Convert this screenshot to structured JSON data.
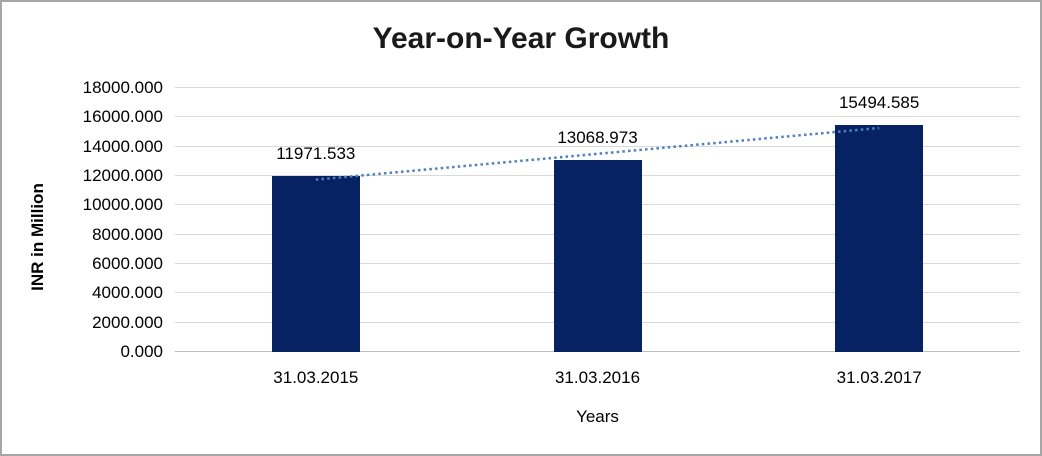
{
  "chart_data": {
    "type": "bar",
    "title": "Year-on-Year Growth",
    "xlabel": "Years",
    "ylabel": "INR in Million",
    "categories": [
      "31.03.2015",
      "31.03.2016",
      "31.03.2017"
    ],
    "values": [
      11971.533,
      13068.973,
      15494.585
    ],
    "data_labels": [
      "11971.533",
      "13068.973",
      "15494.585"
    ],
    "ylim": [
      0,
      18000
    ],
    "y_tick_step": 2000,
    "y_tick_labels": [
      "18000.000",
      "16000.000",
      "14000.000",
      "12000.000",
      "10000.000",
      "8000.000",
      "6000.000",
      "4000.000",
      "2000.000",
      "0.000"
    ],
    "grid": true,
    "legend": "none",
    "bar_color": "#072262",
    "trendline": {
      "type": "linear",
      "style": "dotted",
      "color": "#4f81bd"
    },
    "gridline_color": "#d9d9d9",
    "axis_line_color": "#bfbfbf",
    "frame_border_color": "#a6a6a6"
  }
}
